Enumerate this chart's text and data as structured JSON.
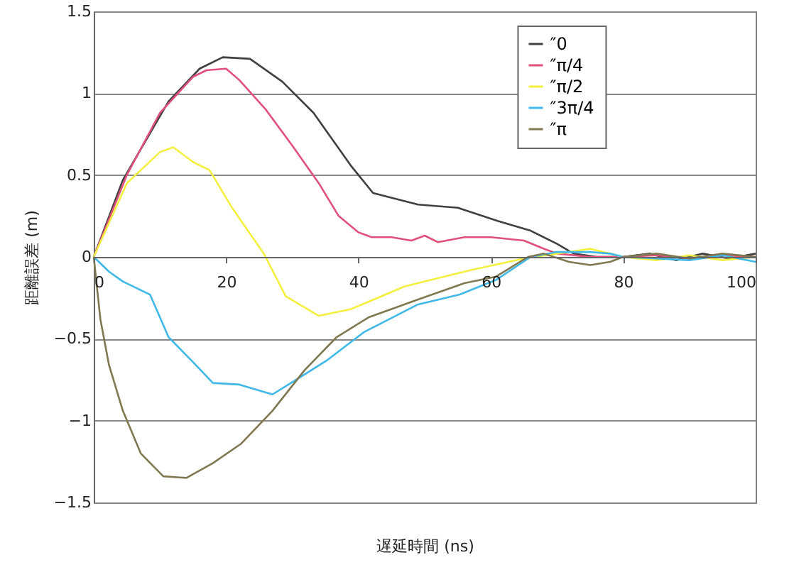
{
  "chart_data": {
    "type": "line",
    "xlabel": "遅延時間 (ns)",
    "ylabel": "距離誤差 (m)",
    "xlim": [
      0,
      100
    ],
    "ylim": [
      -1.5,
      1.5
    ],
    "xticks": [
      0,
      20,
      40,
      60,
      80,
      100
    ],
    "yticks": [
      -1.5,
      -1,
      -0.5,
      0,
      0.5,
      1,
      1.5
    ],
    "grid": "y",
    "legend": "top right",
    "line_style": "solid",
    "marker": "none",
    "series": [
      {
        "name": "″0",
        "color": "#404040",
        "x": [
          0,
          4.4,
          11.3,
          16,
          19.5,
          23.6,
          28.5,
          33.2,
          38.8,
          42.2,
          49,
          55,
          61,
          66,
          70,
          72.5,
          76,
          80,
          84,
          88,
          92,
          96,
          100
        ],
        "values": [
          0,
          0.47,
          0.95,
          1.15,
          1.22,
          1.21,
          1.07,
          0.88,
          0.56,
          0.39,
          0.32,
          0.3,
          0.22,
          0.16,
          0.08,
          0.02,
          0,
          0,
          0.02,
          -0.02,
          0.02,
          -0.01,
          0.02
        ]
      },
      {
        "name": "″π/4",
        "color": "#e0507a",
        "x": [
          0,
          5,
          10,
          15,
          17,
          20,
          22,
          26,
          30,
          34,
          37,
          40,
          42,
          45,
          48,
          50,
          52,
          56,
          60,
          65,
          68,
          70,
          75,
          80,
          85,
          90,
          95,
          100
        ],
        "values": [
          0,
          0.5,
          0.88,
          1.1,
          1.14,
          1.15,
          1.08,
          0.9,
          0.68,
          0.45,
          0.25,
          0.15,
          0.12,
          0.12,
          0.1,
          0.13,
          0.09,
          0.12,
          0.12,
          0.1,
          0.05,
          0.02,
          0,
          0,
          0.01,
          -0.01,
          0.01,
          0
        ]
      },
      {
        "name": "″π/2",
        "color": "#f4f040",
        "x": [
          0,
          5,
          10,
          12,
          15,
          17.5,
          20.9,
          25.7,
          29,
          34,
          38.8,
          47,
          57,
          65,
          70,
          75,
          78,
          80,
          85,
          90,
          95,
          100
        ],
        "values": [
          0,
          0.45,
          0.64,
          0.67,
          0.58,
          0.53,
          0.3,
          0.02,
          -0.24,
          -0.36,
          -0.32,
          -0.18,
          -0.08,
          -0.01,
          0.02,
          0.05,
          0.02,
          0,
          -0.02,
          0.01,
          -0.02,
          0
        ]
      },
      {
        "name": "″3π/4",
        "color": "#40b8e8",
        "x": [
          0,
          2.3,
          4.4,
          8.5,
          11.3,
          14.7,
          18,
          22,
          27,
          29.8,
          35.3,
          40.8,
          49,
          55.3,
          60.8,
          66,
          70,
          75,
          78,
          80,
          85,
          90,
          95,
          100
        ],
        "values": [
          0,
          -0.09,
          -0.15,
          -0.23,
          -0.49,
          -0.63,
          -0.77,
          -0.78,
          -0.84,
          -0.77,
          -0.63,
          -0.46,
          -0.29,
          -0.23,
          -0.14,
          0,
          0.03,
          0.03,
          0.02,
          0,
          -0.01,
          -0.02,
          0.01,
          -0.03
        ]
      },
      {
        "name": "″π",
        "color": "#807850",
        "x": [
          0,
          1,
          2.3,
          4.4,
          7.1,
          10.5,
          14,
          18,
          22.3,
          27,
          31.9,
          36.7,
          41.5,
          49,
          56,
          60.8,
          65.6,
          68,
          71.8,
          75,
          78,
          80,
          85,
          90,
          95,
          100
        ],
        "values": [
          0,
          -0.38,
          -0.66,
          -0.94,
          -1.2,
          -1.34,
          -1.35,
          -1.26,
          -1.14,
          -0.94,
          -0.69,
          -0.49,
          -0.37,
          -0.26,
          -0.16,
          -0.12,
          0,
          0.02,
          -0.03,
          -0.05,
          -0.03,
          0,
          0.02,
          -0.01,
          0.02,
          0
        ]
      }
    ]
  }
}
